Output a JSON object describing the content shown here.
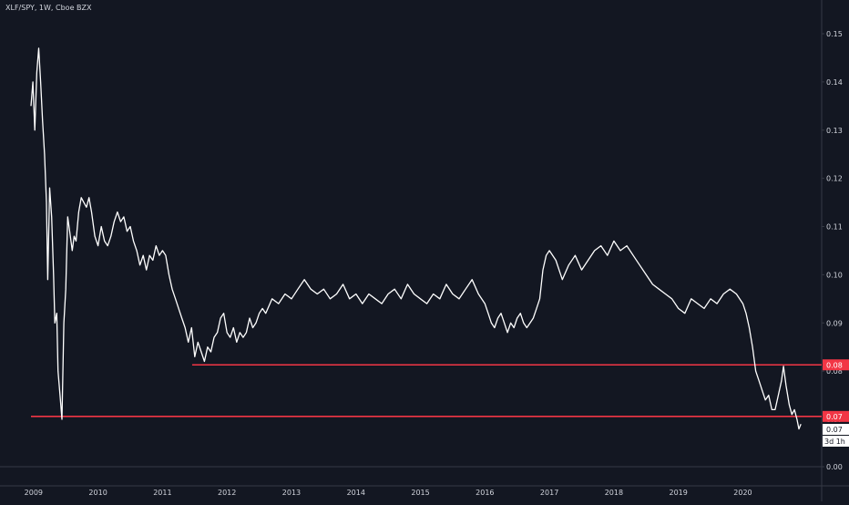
{
  "header": {
    "title": "XLF/SPY, 1W, Cboe BZX"
  },
  "colors": {
    "background": "#131722",
    "line": "#ffffff",
    "level": "#f23645",
    "axis_text": "#d1d4dc",
    "axis_line": "#363a45"
  },
  "chart_data": {
    "type": "line",
    "xlim": [
      2008.96,
      2020.94
    ],
    "ylim": [
      0.0,
      0.159
    ],
    "x_ticks": [
      "2009",
      "2010",
      "2011",
      "2012",
      "2013",
      "2014",
      "2015",
      "2016",
      "2017",
      "2018",
      "2019",
      "2020"
    ],
    "x_tick_values": [
      2009,
      2010,
      2011,
      2012,
      2013,
      2014,
      2015,
      2016,
      2017,
      2018,
      2019,
      2020
    ],
    "y_ticks": [
      "0.00",
      "0.07",
      "0.08",
      "0.09",
      "0.10",
      "0.11",
      "0.12",
      "0.13",
      "0.14",
      "0.15"
    ],
    "y_tick_values": [
      0.0,
      0.07,
      0.08,
      0.09,
      0.1,
      0.11,
      0.12,
      0.13,
      0.14,
      0.15
    ],
    "series": [
      {
        "x": [
          2008.96,
          2008.99,
          2009.02,
          2009.05,
          2009.08,
          2009.11,
          2009.14,
          2009.17,
          2009.2,
          2009.22,
          2009.25,
          2009.28,
          2009.31,
          2009.33,
          2009.36,
          2009.38,
          2009.41,
          2009.44,
          2009.47,
          2009.5,
          2009.53,
          2009.56,
          2009.6,
          2009.63,
          2009.66,
          2009.7,
          2009.74,
          2009.78,
          2009.82,
          2009.86,
          2009.9,
          2009.95,
          2010.0,
          2010.05,
          2010.1,
          2010.15,
          2010.2,
          2010.25,
          2010.3,
          2010.35,
          2010.4,
          2010.45,
          2010.5,
          2010.55,
          2010.6,
          2010.65,
          2010.7,
          2010.75,
          2010.8,
          2010.85,
          2010.9,
          2010.95,
          2011.0,
          2011.05,
          2011.1,
          2011.15,
          2011.2,
          2011.25,
          2011.3,
          2011.35,
          2011.4,
          2011.45,
          2011.5,
          2011.55,
          2011.6,
          2011.65,
          2011.7,
          2011.75,
          2011.8,
          2011.85,
          2011.9,
          2011.95,
          2012.0,
          2012.05,
          2012.1,
          2012.15,
          2012.2,
          2012.25,
          2012.3,
          2012.35,
          2012.4,
          2012.45,
          2012.5,
          2012.55,
          2012.6,
          2012.7,
          2012.8,
          2012.9,
          2013.0,
          2013.1,
          2013.2,
          2013.3,
          2013.4,
          2013.5,
          2013.6,
          2013.7,
          2013.8,
          2013.9,
          2014.0,
          2014.1,
          2014.2,
          2014.3,
          2014.4,
          2014.5,
          2014.6,
          2014.7,
          2014.8,
          2014.9,
          2015.0,
          2015.1,
          2015.2,
          2015.3,
          2015.4,
          2015.5,
          2015.6,
          2015.7,
          2015.8,
          2015.9,
          2016.0,
          2016.05,
          2016.1,
          2016.15,
          2016.2,
          2016.25,
          2016.3,
          2016.35,
          2016.4,
          2016.45,
          2016.5,
          2016.55,
          2016.6,
          2016.65,
          2016.7,
          2016.75,
          2016.8,
          2016.85,
          2016.9,
          2016.95,
          2017.0,
          2017.1,
          2017.2,
          2017.3,
          2017.4,
          2017.5,
          2017.6,
          2017.7,
          2017.8,
          2017.9,
          2018.0,
          2018.1,
          2018.2,
          2018.3,
          2018.4,
          2018.5,
          2018.6,
          2018.7,
          2018.8,
          2018.9,
          2019.0,
          2019.1,
          2019.2,
          2019.3,
          2019.4,
          2019.5,
          2019.6,
          2019.7,
          2019.8,
          2019.9,
          2020.0,
          2020.05,
          2020.1,
          2020.15,
          2020.2,
          2020.25,
          2020.3,
          2020.35,
          2020.4,
          2020.45,
          2020.5,
          2020.55,
          2020.6,
          2020.63,
          2020.67,
          2020.72,
          2020.76,
          2020.8,
          2020.84,
          2020.87,
          2020.9
        ],
        "y": [
          0.135,
          0.14,
          0.13,
          0.142,
          0.147,
          0.14,
          0.132,
          0.125,
          0.115,
          0.099,
          0.118,
          0.112,
          0.1,
          0.09,
          0.092,
          0.08,
          0.075,
          0.07,
          0.09,
          0.097,
          0.112,
          0.109,
          0.105,
          0.108,
          0.107,
          0.113,
          0.116,
          0.115,
          0.114,
          0.116,
          0.113,
          0.108,
          0.106,
          0.11,
          0.107,
          0.106,
          0.108,
          0.111,
          0.113,
          0.111,
          0.112,
          0.109,
          0.11,
          0.107,
          0.105,
          0.102,
          0.104,
          0.101,
          0.104,
          0.103,
          0.106,
          0.104,
          0.105,
          0.104,
          0.1,
          0.097,
          0.095,
          0.093,
          0.091,
          0.089,
          0.086,
          0.089,
          0.083,
          0.086,
          0.084,
          0.082,
          0.085,
          0.084,
          0.087,
          0.088,
          0.091,
          0.092,
          0.088,
          0.087,
          0.089,
          0.086,
          0.088,
          0.087,
          0.088,
          0.091,
          0.089,
          0.09,
          0.092,
          0.093,
          0.092,
          0.095,
          0.094,
          0.096,
          0.095,
          0.097,
          0.099,
          0.097,
          0.096,
          0.097,
          0.095,
          0.096,
          0.098,
          0.095,
          0.096,
          0.094,
          0.096,
          0.095,
          0.094,
          0.096,
          0.097,
          0.095,
          0.098,
          0.096,
          0.095,
          0.094,
          0.096,
          0.095,
          0.098,
          0.096,
          0.095,
          0.097,
          0.099,
          0.096,
          0.094,
          0.092,
          0.09,
          0.089,
          0.091,
          0.092,
          0.09,
          0.088,
          0.09,
          0.089,
          0.091,
          0.092,
          0.09,
          0.089,
          0.09,
          0.091,
          0.093,
          0.095,
          0.101,
          0.104,
          0.105,
          0.103,
          0.099,
          0.102,
          0.104,
          0.101,
          0.103,
          0.105,
          0.106,
          0.104,
          0.107,
          0.105,
          0.106,
          0.104,
          0.102,
          0.1,
          0.098,
          0.097,
          0.096,
          0.095,
          0.093,
          0.092,
          0.095,
          0.094,
          0.093,
          0.095,
          0.094,
          0.096,
          0.097,
          0.096,
          0.094,
          0.092,
          0.089,
          0.085,
          0.08,
          0.078,
          0.076,
          0.074,
          0.075,
          0.072,
          0.072,
          0.075,
          0.078,
          0.081,
          0.077,
          0.073,
          0.071,
          0.072,
          0.07,
          0.068,
          0.069
        ]
      }
    ],
    "levels": [
      {
        "value": 0.0813,
        "label": "0.08",
        "x_start": 2011.46
      },
      {
        "value": 0.0706,
        "label": "0.07",
        "x_start": 2008.96
      }
    ],
    "last_label": "0.07",
    "countdown": "3d 1h"
  }
}
